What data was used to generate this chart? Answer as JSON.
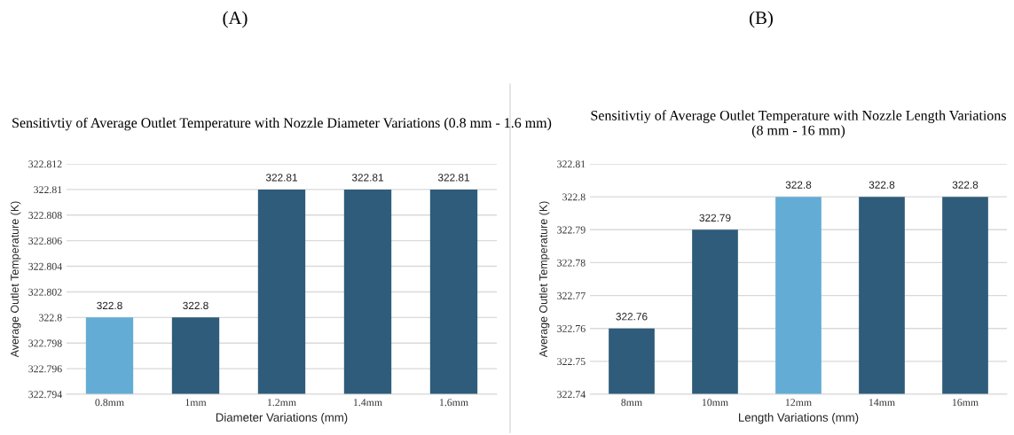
{
  "chart_data": [
    {
      "type": "bar",
      "title": "(A)",
      "subtitle": "Sensitivtiy of Average Outlet Temperature with Nozzle Diameter Variations (0.8 mm - 1.6 mm)",
      "xlabel": "Diameter Variations (mm)",
      "ylabel": "Average Outlet Temperature (K)",
      "categories": [
        "0.8mm",
        "1mm",
        "1.2mm",
        "1.4mm",
        "1.6mm"
      ],
      "values": [
        322.8,
        322.8,
        322.81,
        322.81,
        322.81
      ],
      "colors": [
        "#63acd5",
        "#2e5c7a",
        "#2e5c7a",
        "#2e5c7a",
        "#2e5c7a"
      ],
      "ylim": [
        322.794,
        322.812
      ],
      "yticks": [
        322.794,
        322.796,
        322.798,
        322.8,
        322.802,
        322.804,
        322.806,
        322.808,
        322.81,
        322.812
      ],
      "grid": "y",
      "data_labels": true
    },
    {
      "type": "bar",
      "title": "(B)",
      "subtitle": "Sensitivtiy of Average Outlet Temperature with Nozzle Length Variations (8 mm - 16 mm)",
      "xlabel": "Length Variations (mm)",
      "ylabel": "Average Outlet Temperature (K)",
      "categories": [
        "8mm",
        "10mm",
        "12mm",
        "14mm",
        "16mm"
      ],
      "values": [
        322.76,
        322.79,
        322.8,
        322.8,
        322.8
      ],
      "colors": [
        "#2e5c7a",
        "#2e5c7a",
        "#63acd5",
        "#2e5c7a",
        "#2e5c7a"
      ],
      "ylim": [
        322.74,
        322.81
      ],
      "yticks": [
        322.74,
        322.75,
        322.76,
        322.77,
        322.78,
        322.79,
        322.8,
        322.81
      ],
      "grid": "y",
      "data_labels": true
    }
  ]
}
